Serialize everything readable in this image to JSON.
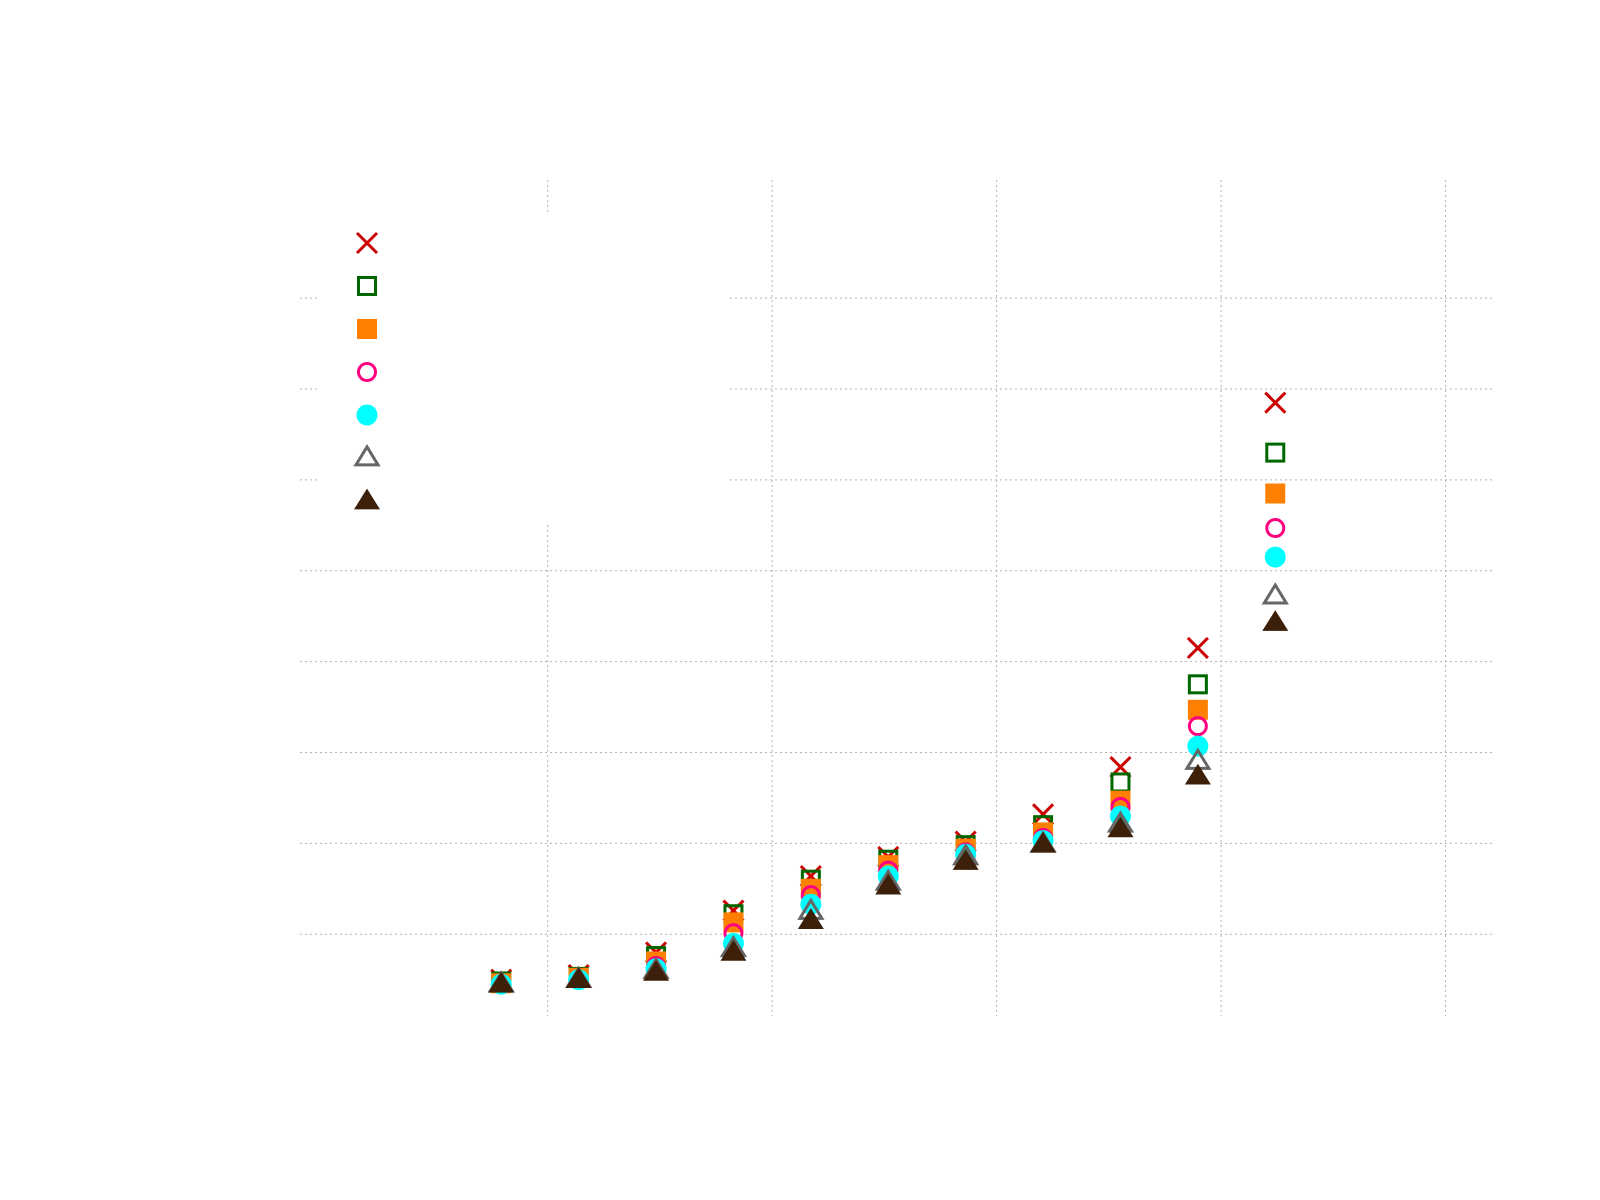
{
  "chart_data": {
    "type": "scatter",
    "title": "",
    "xlabel": "",
    "ylabel": "",
    "grid": true,
    "legend": "top-left",
    "x": [
      1,
      2,
      3,
      4,
      5,
      6,
      7,
      8,
      9,
      10,
      11,
      12
    ],
    "xlim": [
      -1.6,
      13.8
    ],
    "ylim": [
      -0.9,
      8.3
    ],
    "xgrid": [
      1.6,
      4.5,
      7.4,
      10.3,
      13.2
    ],
    "ygrid": [
      0,
      1,
      2,
      3,
      4,
      5,
      6,
      7
    ],
    "series": [
      {
        "marker": "x",
        "color": "#cc0000",
        "values": [
          -0.5,
          -0.45,
          -0.2,
          0.26,
          0.64,
          0.85,
          1.02,
          1.32,
          1.84,
          3.15,
          5.85,
          null
        ]
      },
      {
        "marker": "square-open",
        "color": "#006600",
        "values": [
          -0.52,
          -0.47,
          -0.24,
          0.22,
          0.6,
          0.82,
          0.98,
          1.2,
          1.67,
          2.75,
          5.3,
          null
        ]
      },
      {
        "marker": "square-filled",
        "color": "#ff8000",
        "values": [
          -0.54,
          -0.48,
          -0.3,
          0.13,
          0.5,
          0.76,
          0.94,
          1.12,
          1.47,
          2.47,
          4.85,
          null
        ]
      },
      {
        "marker": "circle-open",
        "color": "#ff0080",
        "values": [
          -0.55,
          -0.5,
          -0.35,
          0.01,
          0.43,
          0.7,
          0.9,
          1.06,
          1.4,
          2.29,
          4.47,
          null
        ]
      },
      {
        "marker": "circle-filled",
        "color": "#00ffff",
        "values": [
          -0.55,
          -0.5,
          -0.38,
          -0.1,
          0.33,
          0.64,
          0.88,
          1.03,
          1.3,
          2.07,
          4.15,
          null
        ]
      },
      {
        "marker": "triangle-open",
        "color": "#666666",
        "values": [
          -0.55,
          -0.5,
          -0.4,
          -0.16,
          0.25,
          0.57,
          0.85,
          0.99,
          1.21,
          1.9,
          3.72,
          null
        ]
      },
      {
        "marker": "triangle-filled",
        "color": "#3d200a",
        "values": [
          -0.55,
          -0.5,
          -0.42,
          -0.2,
          0.15,
          0.53,
          0.8,
          0.99,
          1.16,
          1.74,
          3.43,
          null
        ]
      }
    ]
  }
}
